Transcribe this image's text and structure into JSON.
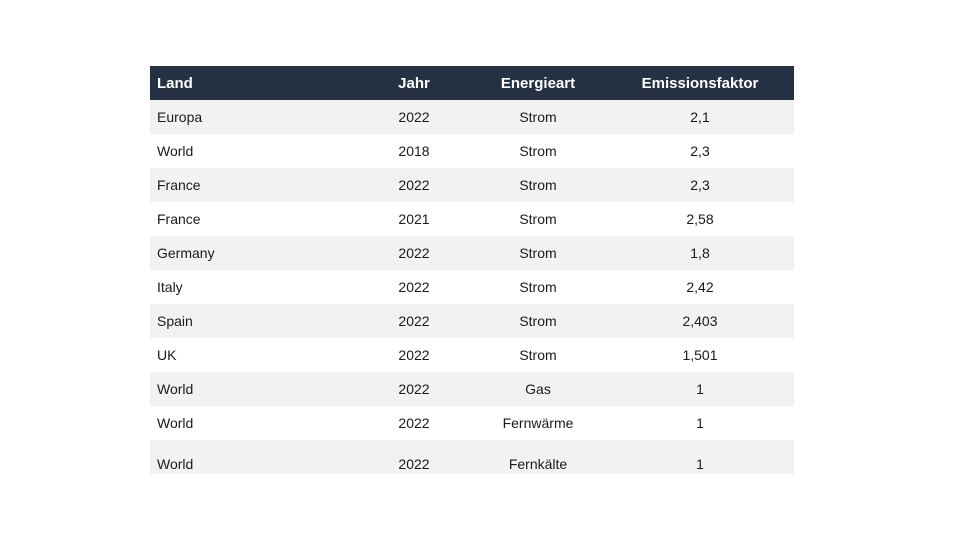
{
  "table": {
    "headers": {
      "land": "Land",
      "jahr": "Jahr",
      "energieart": "Energieart",
      "emissionsfaktor": "Emissionsfaktor"
    },
    "rows": [
      {
        "land": "Europa",
        "jahr": "2022",
        "energieart": "Strom",
        "emissionsfaktor": "2,1"
      },
      {
        "land": "World",
        "jahr": "2018",
        "energieart": "Strom",
        "emissionsfaktor": "2,3"
      },
      {
        "land": "France",
        "jahr": "2022",
        "energieart": "Strom",
        "emissionsfaktor": "2,3"
      },
      {
        "land": "France",
        "jahr": "2021",
        "energieart": "Strom",
        "emissionsfaktor": "2,58"
      },
      {
        "land": "Germany",
        "jahr": "2022",
        "energieart": "Strom",
        "emissionsfaktor": "1,8"
      },
      {
        "land": "Italy",
        "jahr": "2022",
        "energieart": "Strom",
        "emissionsfaktor": "2,42"
      },
      {
        "land": "Spain",
        "jahr": "2022",
        "energieart": "Strom",
        "emissionsfaktor": "2,403"
      },
      {
        "land": "UK",
        "jahr": "2022",
        "energieart": "Strom",
        "emissionsfaktor": "1,501"
      },
      {
        "land": "World",
        "jahr": "2022",
        "energieart": "Gas",
        "emissionsfaktor": "1"
      },
      {
        "land": "World",
        "jahr": "2022",
        "energieart": "Fernwärme",
        "emissionsfaktor": "1"
      },
      {
        "land": "World",
        "jahr": "2022",
        "energieart": "Fernkälte",
        "emissionsfaktor": "1"
      }
    ]
  },
  "colors": {
    "header_bg": "#263244",
    "header_text": "#ffffff",
    "row_shade": "#f2f2f2"
  }
}
